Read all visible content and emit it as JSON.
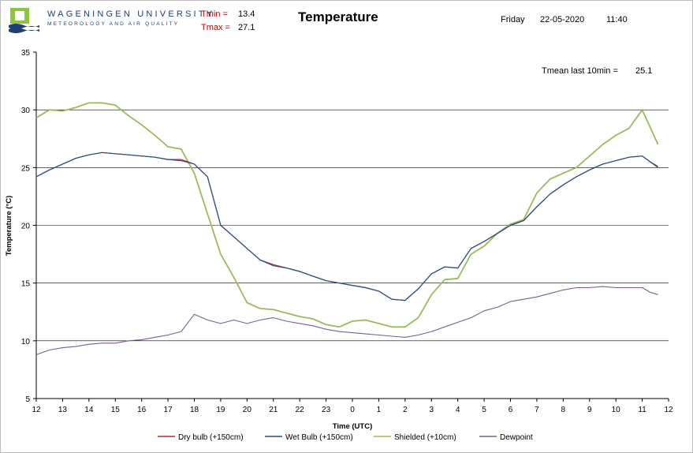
{
  "header": {
    "university": "WAGENINGEN UNIVERSITY",
    "department": "METEOROLOGY AND AIR QUALITY",
    "tmin_label": "Tmin =",
    "tmin_value": "13.4",
    "tmax_label": "Tmax =",
    "tmax_value": "27.1",
    "title": "Temperature",
    "day": "Friday",
    "date": "22-05-2020",
    "time": "11:40",
    "tmean_label": "Tmean last 10min =",
    "tmean_value": "25.1"
  },
  "colors": {
    "dry_bulb": "#c0272d",
    "wet_bulb": "#1f4e8c",
    "shielded": "#9bbb59",
    "dewpoint": "#7b5a9e",
    "grid": "#000000",
    "logo_green": "#8cc63f",
    "logo_blue": "#1c3f74"
  },
  "chart_data": {
    "type": "line",
    "title": "Temperature",
    "xlabel": "Time (UTC)",
    "ylabel": "Temperature (°C)",
    "ylim": [
      5,
      35
    ],
    "yticks": [
      5,
      10,
      15,
      20,
      25,
      30,
      35
    ],
    "xticks": [
      "12",
      "13",
      "14",
      "15",
      "16",
      "17",
      "18",
      "19",
      "20",
      "21",
      "22",
      "23",
      "0",
      "1",
      "2",
      "3",
      "4",
      "5",
      "6",
      "7",
      "8",
      "9",
      "10",
      "11",
      "12"
    ],
    "x_unit": "hours since 12:00 UTC on 21-05-2020",
    "grid": "horizontal",
    "legend_position": "bottom",
    "series": [
      {
        "name": "Dry bulb (+150cm)",
        "x": [
          0,
          0.5,
          1,
          1.5,
          2,
          2.5,
          3,
          3.5,
          4,
          4.5,
          5,
          5.5,
          6,
          6.5,
          7,
          7.5,
          8,
          8.5,
          9,
          9.5,
          10,
          10.5,
          11,
          11.5,
          12,
          12.5,
          13,
          13.5,
          14,
          14.5,
          15,
          15.5,
          16,
          16.5,
          17,
          17.5,
          18,
          18.5,
          19,
          19.5,
          20,
          20.5,
          21,
          21.5,
          22,
          22.5,
          23,
          23.3,
          23.6
        ],
        "y": [
          24.2,
          24.8,
          25.3,
          25.8,
          26.1,
          26.3,
          26.2,
          26.1,
          26.0,
          25.9,
          25.7,
          25.7,
          25.3,
          24.2,
          20.0,
          19.0,
          18.0,
          17.0,
          16.6,
          16.3,
          16.0,
          15.6,
          15.2,
          15.0,
          14.8,
          14.6,
          14.3,
          13.6,
          13.5,
          14.5,
          15.8,
          16.4,
          16.3,
          18.0,
          18.6,
          19.3,
          20.0,
          20.4,
          21.6,
          22.7,
          23.5,
          24.2,
          24.8,
          25.3,
          25.6,
          25.9,
          26.0,
          25.5,
          25.1
        ]
      },
      {
        "name": "Wet Bulb (+150cm)",
        "x": [
          0,
          0.5,
          1,
          1.5,
          2,
          2.5,
          3,
          3.5,
          4,
          4.5,
          5,
          5.5,
          6,
          6.5,
          7,
          7.5,
          8,
          8.5,
          9,
          9.5,
          10,
          10.5,
          11,
          11.5,
          12,
          12.5,
          13,
          13.5,
          14,
          14.5,
          15,
          15.5,
          16,
          16.5,
          17,
          17.5,
          18,
          18.5,
          19,
          19.5,
          20,
          20.5,
          21,
          21.5,
          22,
          22.5,
          23,
          23.3,
          23.6
        ],
        "y": [
          24.2,
          24.8,
          25.3,
          25.8,
          26.1,
          26.3,
          26.2,
          26.1,
          26.0,
          25.9,
          25.7,
          25.6,
          25.3,
          24.2,
          20.0,
          19.0,
          18.0,
          17.0,
          16.5,
          16.3,
          16.0,
          15.6,
          15.2,
          15.0,
          14.8,
          14.6,
          14.3,
          13.6,
          13.5,
          14.5,
          15.8,
          16.4,
          16.3,
          18.0,
          18.6,
          19.3,
          20.0,
          20.4,
          21.6,
          22.7,
          23.5,
          24.2,
          24.8,
          25.3,
          25.6,
          25.9,
          26.0,
          25.5,
          25.0
        ]
      },
      {
        "name": "Shielded (+10cm)",
        "x": [
          0,
          0.5,
          1,
          1.5,
          2,
          2.5,
          3,
          3.5,
          4,
          4.5,
          5,
          5.5,
          6,
          6.5,
          7,
          7.5,
          8,
          8.5,
          9,
          9.5,
          10,
          10.5,
          11,
          11.5,
          12,
          12.5,
          13,
          13.5,
          14,
          14.5,
          15,
          15.5,
          16,
          16.5,
          17,
          17.5,
          18,
          18.5,
          19,
          19.5,
          20,
          20.5,
          21,
          21.5,
          22,
          22.5,
          23,
          23.3,
          23.6
        ],
        "y": [
          29.3,
          30.0,
          29.9,
          30.2,
          30.6,
          30.6,
          30.4,
          29.5,
          28.7,
          27.8,
          26.8,
          26.6,
          24.5,
          21.0,
          17.5,
          15.5,
          13.3,
          12.8,
          12.7,
          12.4,
          12.1,
          11.9,
          11.4,
          11.2,
          11.7,
          11.8,
          11.5,
          11.2,
          11.2,
          12.0,
          14.0,
          15.3,
          15.4,
          17.5,
          18.2,
          19.3,
          20.1,
          20.5,
          22.8,
          24.0,
          24.5,
          25.0,
          26.0,
          27.0,
          27.8,
          28.4,
          30.0,
          28.5,
          27.0
        ]
      },
      {
        "name": "Dewpoint",
        "x": [
          0,
          0.5,
          1,
          1.5,
          2,
          2.5,
          3,
          3.5,
          4,
          4.5,
          5,
          5.5,
          6,
          6.5,
          7,
          7.5,
          8,
          8.5,
          9,
          9.5,
          10,
          10.5,
          11,
          11.5,
          12,
          12.5,
          13,
          13.5,
          14,
          14.5,
          15,
          15.5,
          16,
          16.5,
          17,
          17.5,
          18,
          18.5,
          19,
          19.5,
          20,
          20.5,
          21,
          21.5,
          22,
          22.5,
          23,
          23.3,
          23.6
        ],
        "y": [
          8.8,
          9.2,
          9.4,
          9.5,
          9.7,
          9.8,
          9.8,
          10.0,
          10.1,
          10.3,
          10.5,
          10.8,
          12.3,
          11.8,
          11.5,
          11.8,
          11.5,
          11.8,
          12.0,
          11.7,
          11.5,
          11.3,
          11.0,
          10.8,
          10.7,
          10.6,
          10.5,
          10.4,
          10.3,
          10.5,
          10.8,
          11.2,
          11.6,
          12.0,
          12.6,
          12.9,
          13.4,
          13.6,
          13.8,
          14.1,
          14.4,
          14.6,
          14.6,
          14.7,
          14.6,
          14.6,
          14.6,
          14.2,
          14.0
        ]
      }
    ]
  }
}
